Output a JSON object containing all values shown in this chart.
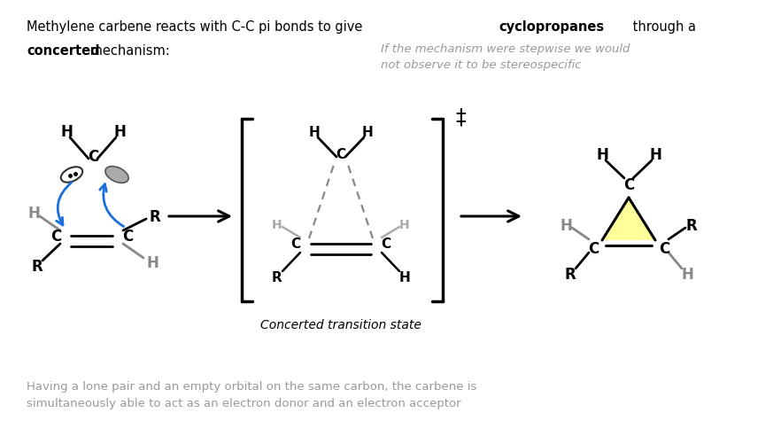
{
  "title_text": "Methylene carbene reacts with C-C pi bonds to give ",
  "title_bold": "cyclopropanes",
  "title_end": " through a",
  "title2_bold": "concerted",
  "title2_end": " mechanism:",
  "italic_note": "If the mechanism were stepwise we would\nnot observe it to be stereospecific",
  "footer_text": "Having a lone pair and an empty orbital on the same carbon, the carbene is\nsimultaneously able to act as an electron donor and an electron acceptor",
  "concerted_label": "Concerted transition state",
  "background_color": "#ffffff",
  "text_color": "#000000",
  "gray_color": "#808080",
  "blue_color": "#1a6fdf",
  "yellow_fill": "#ffff99",
  "dashed_gray": "#aaaaaa",
  "bracket_tab": 0.12,
  "bracket_lw": 2.5
}
